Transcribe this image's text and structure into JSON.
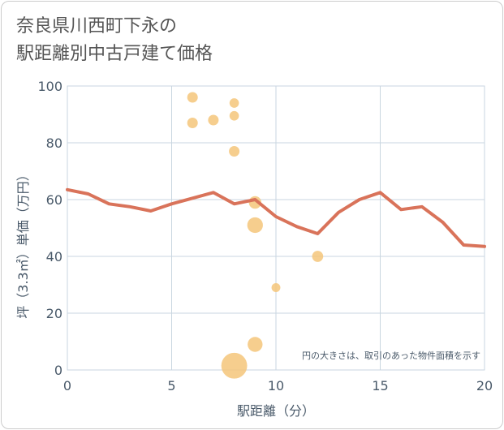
{
  "title_line1": "奈良県川西町下永の",
  "title_line2": "駅距離別中古戸建て価格",
  "chart_data": {
    "type": "scatter+line",
    "title": "奈良県川西町下永の駅距離別中古戸建て価格",
    "xlabel": "駅距離（分）",
    "ylabel": "坪（3.3㎡）単価（万円）",
    "xlim": [
      0,
      20
    ],
    "ylim": [
      0,
      100
    ],
    "xticks": [
      "0",
      "5",
      "10",
      "15",
      "20"
    ],
    "yticks": [
      "0",
      "20",
      "40",
      "60",
      "80",
      "100"
    ],
    "grid": true,
    "annotation": "円の大きさは、取引のあった物件面積を示す",
    "colors": {
      "line": "#d9735a",
      "bubble": "#f5c57a",
      "grid": "#c9d6e0",
      "axis_text": "#4a5a6a"
    },
    "line_series": {
      "x": [
        0,
        1,
        2,
        3,
        4,
        5,
        6,
        7,
        8,
        9,
        10,
        11,
        12,
        13,
        14,
        15,
        16,
        17,
        18,
        19,
        20
      ],
      "y": [
        63.5,
        62,
        58.5,
        57.5,
        56,
        58.5,
        60.5,
        62.5,
        58.5,
        60,
        54,
        50.5,
        48,
        55.5,
        60,
        62.5,
        56.5,
        57.5,
        52,
        44,
        43.5
      ]
    },
    "bubbles": [
      {
        "x": 6,
        "y": 96,
        "size": 1
      },
      {
        "x": 6,
        "y": 87,
        "size": 1
      },
      {
        "x": 7,
        "y": 88,
        "size": 1
      },
      {
        "x": 8,
        "y": 94,
        "size": 0.8
      },
      {
        "x": 8,
        "y": 89.5,
        "size": 0.8
      },
      {
        "x": 8,
        "y": 77,
        "size": 1
      },
      {
        "x": 8,
        "y": 1.5,
        "size": 6
      },
      {
        "x": 9,
        "y": 59,
        "size": 1.4
      },
      {
        "x": 9,
        "y": 51,
        "size": 2.2
      },
      {
        "x": 9,
        "y": 9,
        "size": 2
      },
      {
        "x": 10,
        "y": 29,
        "size": 0.7
      },
      {
        "x": 12,
        "y": 40,
        "size": 1.1
      }
    ]
  }
}
